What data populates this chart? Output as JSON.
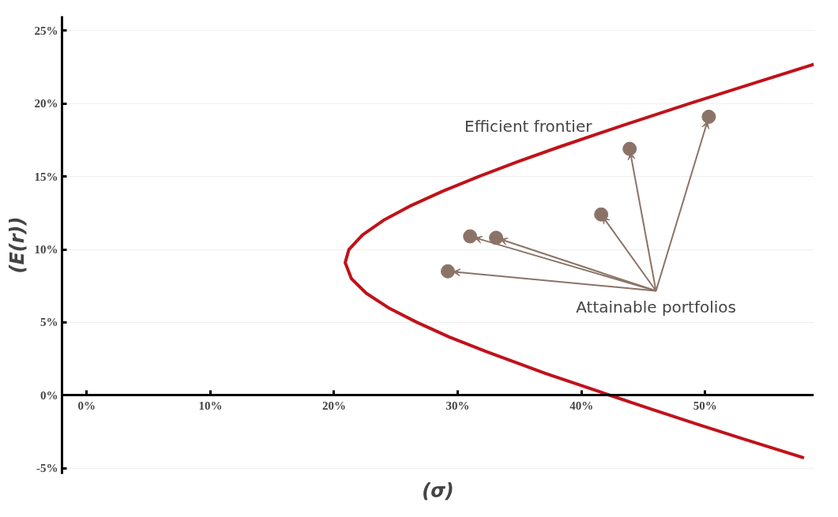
{
  "chart_data": {
    "type": "scatter",
    "xlabel": "(σ)",
    "ylabel": "(E(r))",
    "xlim": [
      -2,
      58.8
    ],
    "ylim": [
      -5.4,
      26
    ],
    "xticks": [
      {
        "value": 0,
        "label": "0%"
      },
      {
        "value": 10,
        "label": "10%"
      },
      {
        "value": 20,
        "label": "20%"
      },
      {
        "value": 30,
        "label": "30%"
      },
      {
        "value": 40,
        "label": "40%"
      },
      {
        "value": 50,
        "label": "50%"
      }
    ],
    "yticks": [
      {
        "value": -5,
        "label": "-5%"
      },
      {
        "value": 0,
        "label": "0%"
      },
      {
        "value": 5,
        "label": "5%"
      },
      {
        "value": 10,
        "label": "10%"
      },
      {
        "value": 15,
        "label": "15%"
      },
      {
        "value": 20,
        "label": "20%"
      },
      {
        "value": 25,
        "label": "25%"
      }
    ],
    "grid": "y",
    "series": [
      {
        "type": "line",
        "color": "#c0121a",
        "x": [
          58.8,
          54.3,
          48.7,
          43.3,
          38.1,
          34.8,
          31.7,
          28.8,
          26.2,
          24.0,
          22.3,
          21.2,
          20.9,
          21.4,
          22.6,
          24.4,
          26.7,
          29.3,
          32.3,
          37.1,
          42.3,
          45.8,
          49.4,
          53.1,
          58.0
        ],
        "values": [
          22.7,
          21.5,
          20,
          18.5,
          17,
          16,
          15,
          14,
          13,
          12,
          11,
          10,
          9.1,
          8,
          7,
          6,
          5,
          4,
          3,
          1.5,
          0,
          -1,
          -2,
          -3,
          -4.3
        ]
      },
      {
        "marker": "circle",
        "color": "#8b7368",
        "x": [
          29.2,
          31.0,
          33.1,
          41.6,
          43.9,
          50.3
        ],
        "values": [
          8.5,
          10.9,
          10.8,
          12.4,
          16.9,
          19.1
        ]
      }
    ],
    "annotations": [
      "Efficient frontier",
      {
        "text": "Attainable portfolios",
        "x": 29.2,
        "y": 8.5
      }
    ]
  }
}
